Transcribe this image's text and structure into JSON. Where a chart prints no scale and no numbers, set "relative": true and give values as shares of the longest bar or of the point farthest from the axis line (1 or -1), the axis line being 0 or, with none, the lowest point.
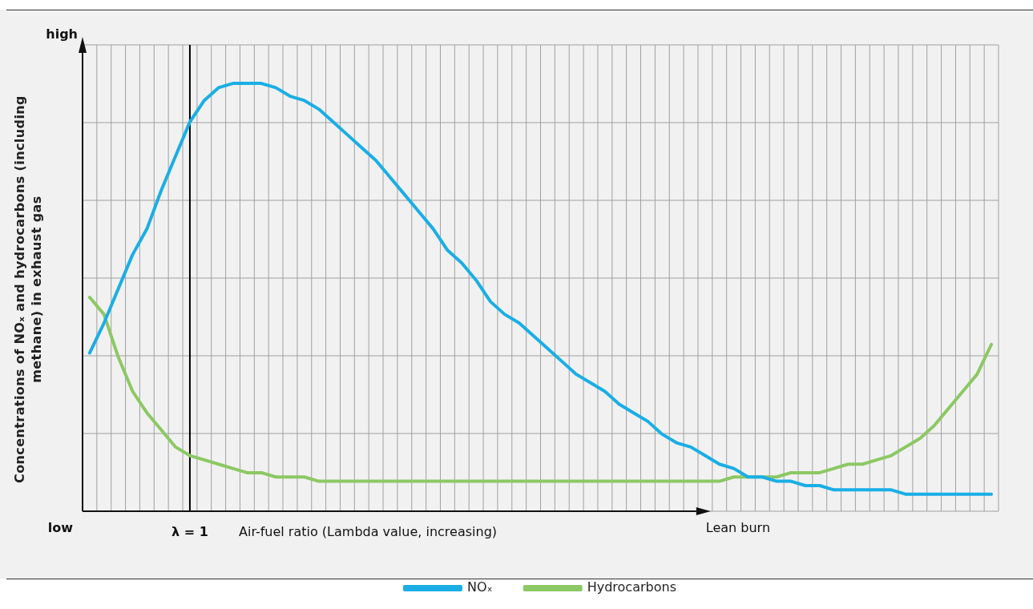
{
  "chart_data": {
    "type": "line",
    "relative": true,
    "xlabel": "Air-fuel ratio (Lambda value, increasing)",
    "ylabel": "Concentrations of NOₓ and hydrocarbons (including methane) in exhaust gas",
    "annotations": [
      "high",
      "low",
      "Lean burn",
      "λ = 1"
    ],
    "categories": [
      null,
      null,
      null,
      null,
      null,
      null,
      null,
      null,
      null,
      null,
      null,
      null,
      null,
      null,
      null,
      null,
      null,
      null,
      null,
      null,
      null,
      null,
      null,
      null,
      null,
      null,
      null,
      null,
      null,
      null,
      null,
      null,
      null,
      null,
      null,
      null,
      null,
      null,
      null,
      null,
      null,
      null,
      null,
      null,
      null,
      null,
      null,
      null,
      null,
      null,
      null,
      null,
      null,
      null,
      null,
      null,
      null,
      null,
      null,
      null,
      null,
      null,
      null,
      null
    ],
    "series": [
      {
        "name": "NOₓ",
        "color": "#1aaee5",
        "values": [
          0.37,
          0.44,
          0.52,
          0.6,
          0.66,
          0.75,
          0.83,
          0.91,
          0.96,
          0.99,
          1.0,
          1,
          1.0,
          0.99,
          0.97,
          0.96,
          0.94,
          0.91,
          0.88,
          0.85,
          0.82,
          0.78,
          0.74,
          0.7,
          0.66,
          0.61,
          0.58,
          0.54,
          0.49,
          0.46,
          0.44,
          0.41,
          0.38,
          0.35,
          0.32,
          0.3,
          0.28,
          0.25,
          0.23,
          0.21,
          0.18,
          0.16,
          0.15,
          0.13,
          0.11,
          0.1,
          0.08,
          0.08,
          0.07,
          0.07,
          0.06,
          0.06,
          0.05,
          0.05,
          0.05,
          0.05,
          0.05,
          0.04,
          0.04,
          0.04,
          0.04,
          0.04,
          0.04,
          0.04
        ]
      },
      {
        "name": "Hydrocarbons",
        "color": "#8cc864",
        "values": [
          0.5,
          0.46,
          0.36,
          0.28,
          0.23,
          0.19,
          0.15,
          0.13,
          0.12,
          0.11,
          0.1,
          0.09,
          0.09,
          0.08,
          0.08,
          0.08,
          0.07,
          0.07,
          0.07,
          0.07,
          0.07,
          0.07,
          0.07,
          0.07,
          0.07,
          0.07,
          0.07,
          0.07,
          0.07,
          0.07,
          0.07,
          0.07,
          0.07,
          0.07,
          0.07,
          0.07,
          0.07,
          0.07,
          0.07,
          0.07,
          0.07,
          0.07,
          0.07,
          0.07,
          0.07,
          0.08,
          0.08,
          0.08,
          0.08,
          0.09,
          0.09,
          0.09,
          0.1,
          0.11,
          0.11,
          0.12,
          0.13,
          0.15,
          0.17,
          0.2,
          0.24,
          0.28,
          0.32,
          0.39
        ]
      }
    ],
    "grid": true,
    "legend": "bottom",
    "marker": "none",
    "line_style": "solid"
  }
}
